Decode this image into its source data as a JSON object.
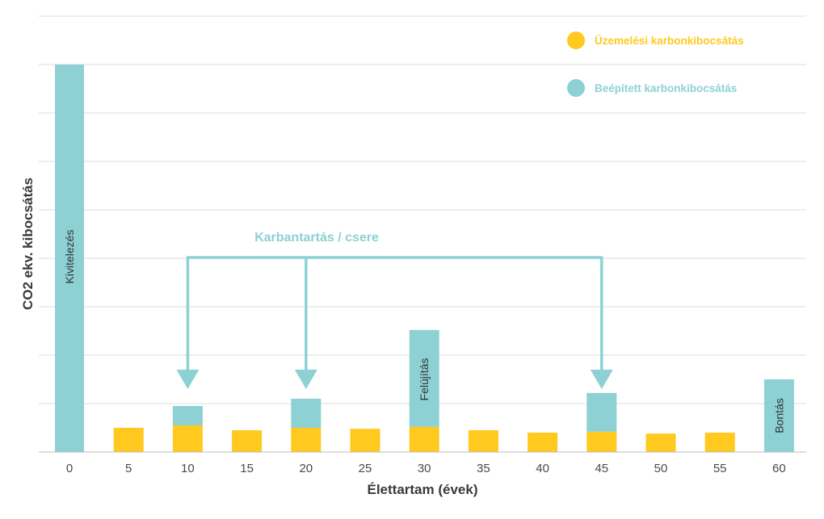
{
  "chart_data": {
    "type": "bar",
    "stacked": true,
    "xlabel": "Élettartam (évek)",
    "ylabel": "CO2 ekv. kibocsátás",
    "x": [
      0,
      5,
      10,
      15,
      20,
      25,
      30,
      35,
      40,
      45,
      50,
      55,
      60
    ],
    "x_tick_labels": [
      "0",
      "5",
      "10",
      "15",
      "20",
      "25",
      "30",
      "35",
      "40",
      "45",
      "50",
      "55",
      "60"
    ],
    "ylim": [
      0,
      9
    ],
    "y_tick_labels_shown": false,
    "grid": true,
    "legend_position": "top-right",
    "series": [
      {
        "name": "Üzemelési karbonkibocsátás",
        "color": "#FFC91F",
        "values": [
          0,
          0.5,
          0.55,
          0.45,
          0.5,
          0.48,
          0.52,
          0.45,
          0.4,
          0.42,
          0.38,
          0.4,
          0
        ]
      },
      {
        "name": "Beépített karbonkibocsátás",
        "color": "#8DD1D5",
        "values": [
          8.0,
          0,
          0.4,
          0,
          0.6,
          0,
          2.0,
          0,
          0,
          0.8,
          0,
          0,
          1.5
        ]
      }
    ],
    "bar_labels": [
      {
        "x": 0,
        "text": "Kivitelezés"
      },
      {
        "x": 30,
        "text": "Felújítás"
      },
      {
        "x": 60,
        "text": "Bontás"
      }
    ],
    "annotation": {
      "text": "Karbantartás / csere",
      "targets": [
        10,
        20,
        45
      ],
      "color": "#8DD1D5"
    }
  }
}
